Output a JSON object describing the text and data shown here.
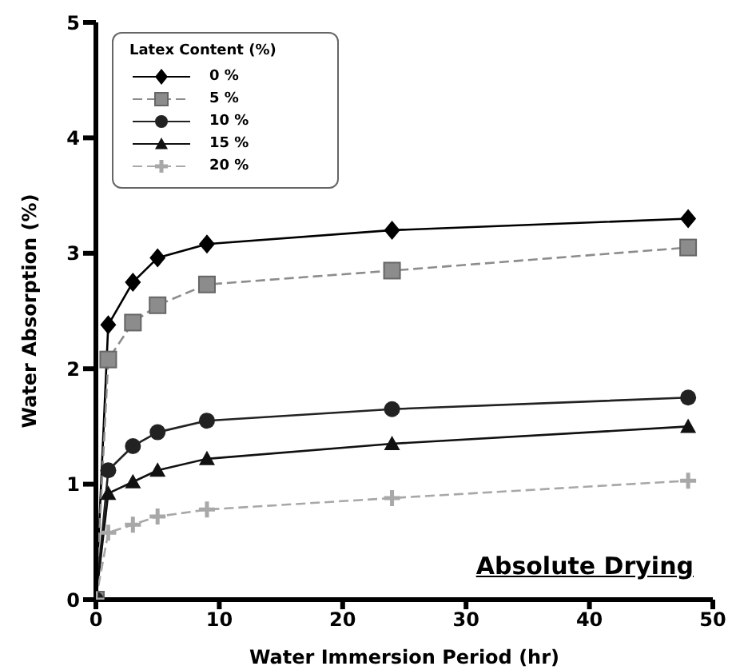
{
  "chart_data": {
    "type": "line",
    "xlabel": "Water Immersion Period (hr)",
    "ylabel": "Water Absorption (%)",
    "legend_title": "Latex Content (%)",
    "legend": "top left",
    "grid": false,
    "x": [
      0,
      1,
      3,
      5,
      9,
      24,
      48
    ],
    "xlim": [
      0,
      50
    ],
    "xticks": [
      0,
      10,
      20,
      30,
      40,
      50
    ],
    "ylim": [
      0,
      5
    ],
    "yticks": [
      0,
      1,
      2,
      3,
      4,
      5
    ],
    "annotations": [
      "Absolute Drying"
    ],
    "series": [
      {
        "name": "0 %",
        "color": "#000000",
        "marker": "diamond",
        "line_style": "solid",
        "values": [
          0,
          2.38,
          2.75,
          2.96,
          3.08,
          3.2,
          3.3
        ]
      },
      {
        "name": "5 %",
        "color": "#8c8c8c",
        "marker": "square",
        "line_style": "dashed",
        "values": [
          0,
          2.08,
          2.4,
          2.55,
          2.73,
          2.85,
          3.05
        ]
      },
      {
        "name": "10 %",
        "color": "#222222",
        "marker": "circle",
        "line_style": "solid",
        "values": [
          0,
          1.12,
          1.33,
          1.45,
          1.55,
          1.65,
          1.75
        ]
      },
      {
        "name": "15 %",
        "color": "#111111",
        "marker": "triangle",
        "line_style": "solid",
        "values": [
          0,
          0.92,
          1.02,
          1.12,
          1.22,
          1.35,
          1.5
        ]
      },
      {
        "name": "20 %",
        "color": "#a8a8a8",
        "marker": "cross",
        "line_style": "dashed",
        "values": [
          0,
          0.58,
          0.65,
          0.72,
          0.78,
          0.88,
          1.03
        ]
      }
    ]
  }
}
